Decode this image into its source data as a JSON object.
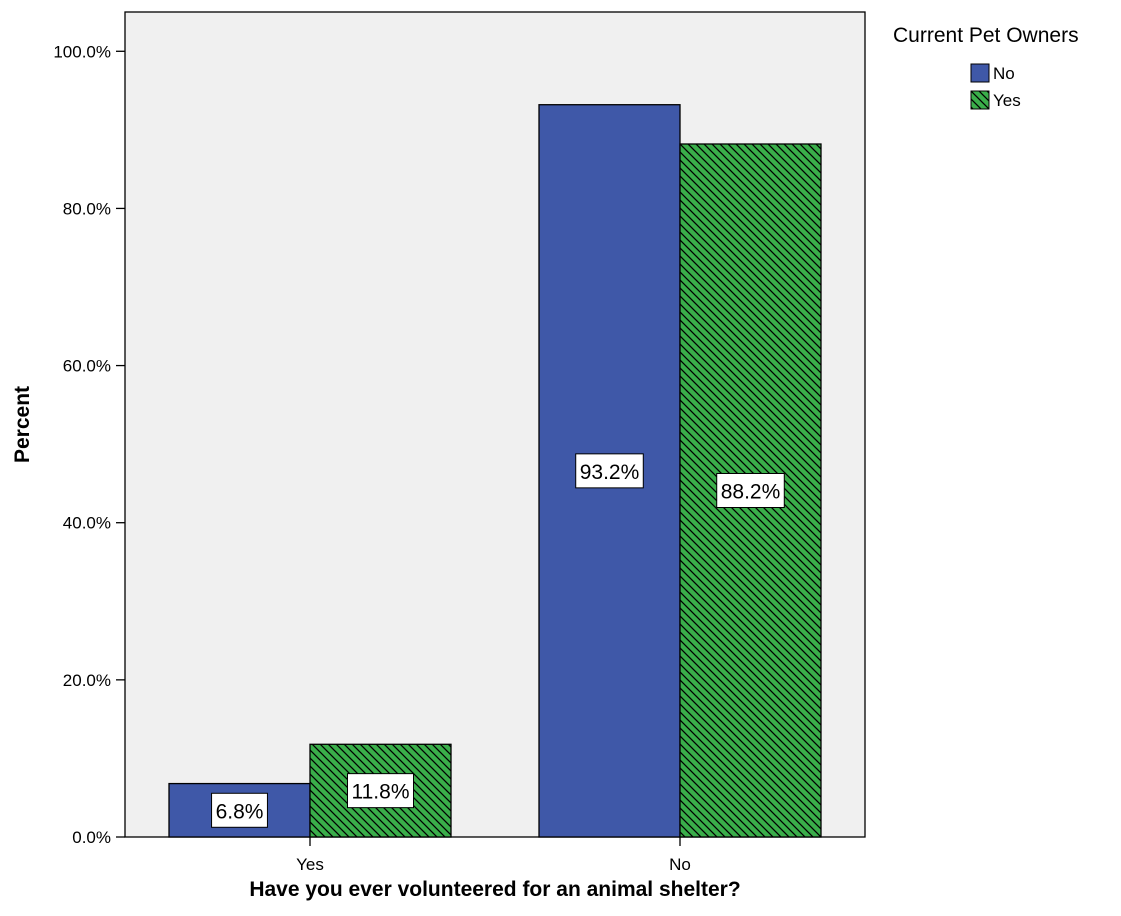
{
  "chart_data": {
    "type": "bar",
    "title": "",
    "xlabel": "Have you ever volunteered for an animal shelter?",
    "ylabel": "Percent",
    "categories": [
      "Yes",
      "No"
    ],
    "ylim": [
      0,
      105
    ],
    "yticks": [
      0,
      20,
      40,
      60,
      80,
      100
    ],
    "ytick_labels": [
      "0.0%",
      "20.0%",
      "40.0%",
      "60.0%",
      "80.0%",
      "100.0%"
    ],
    "grid": false,
    "legend": {
      "title": "Current Pet Owners",
      "position": "top-right"
    },
    "series": [
      {
        "name": "No",
        "values": [
          6.8,
          93.2
        ],
        "labels": [
          "6.8%",
          "93.2%"
        ],
        "color": "#3f58a8",
        "pattern": "solid"
      },
      {
        "name": "Yes",
        "values": [
          11.8,
          88.2
        ],
        "labels": [
          "11.8%",
          "88.2%"
        ],
        "color": "#3aae4a",
        "pattern": "diagonal-hatch"
      }
    ],
    "background": "#f0f0f0"
  }
}
